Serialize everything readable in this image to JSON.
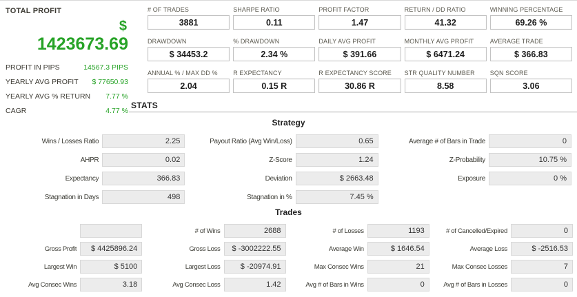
{
  "colors": {
    "green": "#27a327",
    "box_bg": "#ececec",
    "box_border": "#d8d8d8",
    "stat_box_border": "#c3c3c3",
    "rule": "#a8a8a8",
    "label": "#5b594f"
  },
  "left_panel": {
    "title": "TOTAL PROFIT",
    "currency_symbol": "$",
    "total_profit": "1423673.69",
    "rows": [
      {
        "label": "PROFIT IN PIPS",
        "value": "14567.3 PIPS"
      },
      {
        "label": "YEARLY AVG PROFIT",
        "value": "$ 77650.93"
      },
      {
        "label": "YEARLY AVG % RETURN",
        "value": "7.77 %"
      },
      {
        "label": "CAGR",
        "value": "4.77 %"
      }
    ]
  },
  "top_stats": {
    "cells": [
      {
        "label": "# OF TRADES",
        "value": "3881"
      },
      {
        "label": "SHARPE RATIO",
        "value": "0.11"
      },
      {
        "label": "PROFIT FACTOR",
        "value": "1.47"
      },
      {
        "label": "RETURN / DD RATIO",
        "value": "41.32"
      },
      {
        "label": "WINNING PERCENTAGE",
        "value": "69.26 %"
      },
      {
        "label": "DRAWDOWN",
        "value": "$ 34453.2"
      },
      {
        "label": "% DRAWDOWN",
        "value": "2.34 %"
      },
      {
        "label": "DAILY AVG PROFIT",
        "value": "$ 391.66"
      },
      {
        "label": "MONTHLY AVG PROFIT",
        "value": "$ 6471.24"
      },
      {
        "label": "AVERAGE TRADE",
        "value": "$ 366.83"
      },
      {
        "label": "ANNUAL % / MAX DD %",
        "value": "2.04"
      },
      {
        "label": "R EXPECTANCY",
        "value": "0.15 R"
      },
      {
        "label": "R EXPECTANCY SCORE",
        "value": "30.86 R"
      },
      {
        "label": "STR QUALITY NUMBER",
        "value": "8.58"
      },
      {
        "label": "SQN SCORE",
        "value": "3.06"
      }
    ]
  },
  "stats_header": "STATS",
  "strategy": {
    "title": "Strategy",
    "items": [
      {
        "label": "Wins / Losses Ratio",
        "value": "2.25"
      },
      {
        "label": "Payout Ratio (Avg Win/Loss)",
        "value": "0.65"
      },
      {
        "label": "Average # of Bars in Trade",
        "value": "0"
      },
      {
        "label": "AHPR",
        "value": "0.02"
      },
      {
        "label": "Z-Score",
        "value": "1.24"
      },
      {
        "label": "Z-Probability",
        "value": "10.75 %"
      },
      {
        "label": "Expectancy",
        "value": "366.83"
      },
      {
        "label": "Deviation",
        "value": "$ 2663.48"
      },
      {
        "label": "Exposure",
        "value": "0 %"
      },
      {
        "label": "Stagnation in Days",
        "value": "498"
      },
      {
        "label": "Stagnation in %",
        "value": "7.45 %"
      }
    ]
  },
  "trades": {
    "title": "Trades",
    "items": [
      {
        "label": "",
        "value": ""
      },
      {
        "label": "# of Wins",
        "value": "2688"
      },
      {
        "label": "# of Losses",
        "value": "1193"
      },
      {
        "label": "# of Cancelled/Expired",
        "value": "0"
      },
      {
        "label": "Gross Profit",
        "value": "$ 4425896.24"
      },
      {
        "label": "Gross Loss",
        "value": "$ -3002222.55"
      },
      {
        "label": "Average Win",
        "value": "$ 1646.54"
      },
      {
        "label": "Average Loss",
        "value": "$ -2516.53"
      },
      {
        "label": "Largest Win",
        "value": "$ 5100"
      },
      {
        "label": "Largest Loss",
        "value": "$ -20974.91"
      },
      {
        "label": "Max Consec Wins",
        "value": "21"
      },
      {
        "label": "Max Consec Losses",
        "value": "7"
      },
      {
        "label": "Avg Consec Wins",
        "value": "3.18"
      },
      {
        "label": "Avg Consec Loss",
        "value": "1.42"
      },
      {
        "label": "Avg # of Bars in Wins",
        "value": "0"
      },
      {
        "label": "Avg # of Bars in Losses",
        "value": "0"
      }
    ]
  }
}
